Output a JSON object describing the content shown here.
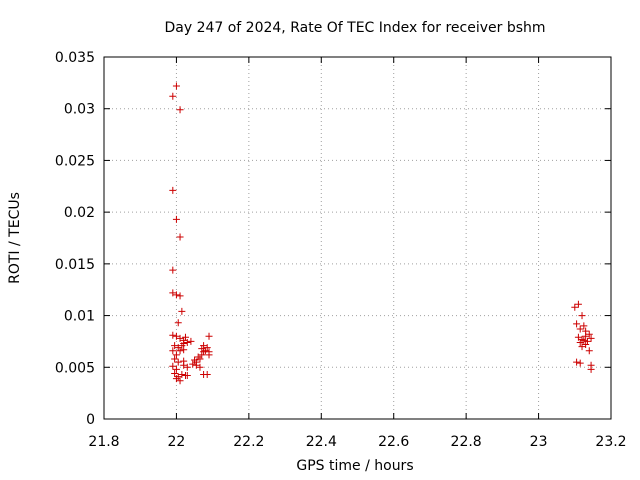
{
  "chart_data": {
    "type": "scatter",
    "title": "Day 247 of 2024, Rate Of TEC Index for receiver bshm",
    "xlabel": "GPS time / hours",
    "ylabel": "ROTI / TECUs",
    "xlim": [
      21.8,
      23.2
    ],
    "ylim": [
      0,
      0.035
    ],
    "xticks": [
      "21.8",
      "22",
      "22.2",
      "22.4",
      "22.6",
      "22.8",
      "23",
      "23.2"
    ],
    "xtick_values": [
      21.8,
      22.0,
      22.2,
      22.4,
      22.6,
      22.8,
      23.0,
      23.2
    ],
    "yticks": [
      "0",
      "0.005",
      "0.01",
      "0.015",
      "0.02",
      "0.025",
      "0.03",
      "0.035"
    ],
    "ytick_values": [
      0,
      0.005,
      0.01,
      0.015,
      0.02,
      0.025,
      0.03,
      0.035
    ],
    "grid": true,
    "legend": "none",
    "marker": "plus",
    "color": "#cc0000",
    "series": [
      {
        "points": [
          [
            21.99,
            0.0312
          ],
          [
            22.0,
            0.0322
          ],
          [
            22.01,
            0.0299
          ],
          [
            21.99,
            0.0221
          ],
          [
            22.0,
            0.0193
          ],
          [
            22.01,
            0.0176
          ],
          [
            21.99,
            0.0144
          ],
          [
            21.99,
            0.0122
          ],
          [
            22.0,
            0.012
          ],
          [
            22.01,
            0.0119
          ],
          [
            22.015,
            0.0104
          ],
          [
            22.005,
            0.0093
          ],
          [
            21.99,
            0.0081
          ],
          [
            22.0,
            0.008
          ],
          [
            22.01,
            0.0078
          ],
          [
            22.02,
            0.0076
          ],
          [
            22.025,
            0.0079
          ],
          [
            22.03,
            0.0074
          ],
          [
            22.04,
            0.0075
          ],
          [
            21.995,
            0.0071
          ],
          [
            22.005,
            0.0069
          ],
          [
            22.015,
            0.0071
          ],
          [
            22.02,
            0.0073
          ],
          [
            21.99,
            0.0066
          ],
          [
            22.0,
            0.0062
          ],
          [
            22.01,
            0.0066
          ],
          [
            22.02,
            0.0067
          ],
          [
            21.995,
            0.0058
          ],
          [
            22.005,
            0.0055
          ],
          [
            22.02,
            0.0056
          ],
          [
            21.99,
            0.0051
          ],
          [
            22.0,
            0.0048
          ],
          [
            22.02,
            0.0052
          ],
          [
            22.03,
            0.005
          ],
          [
            21.995,
            0.0044
          ],
          [
            22.005,
            0.0041
          ],
          [
            22.015,
            0.0043
          ],
          [
            22.025,
            0.0042
          ],
          [
            22.0,
            0.0039
          ],
          [
            22.01,
            0.0037
          ],
          [
            22.03,
            0.0042
          ],
          [
            22.045,
            0.0053
          ],
          [
            22.05,
            0.0057
          ],
          [
            22.055,
            0.0055
          ],
          [
            22.06,
            0.006
          ],
          [
            22.065,
            0.005
          ],
          [
            22.07,
            0.0062
          ],
          [
            22.075,
            0.0065
          ],
          [
            22.08,
            0.0066
          ],
          [
            22.07,
            0.0068
          ],
          [
            22.075,
            0.0071
          ],
          [
            22.085,
            0.0069
          ],
          [
            22.09,
            0.0065
          ],
          [
            22.09,
            0.0062
          ],
          [
            22.09,
            0.008
          ],
          [
            22.075,
            0.0043
          ],
          [
            22.085,
            0.0043
          ],
          [
            22.065,
            0.0058
          ],
          [
            22.055,
            0.0052
          ],
          [
            23.1,
            0.0108
          ],
          [
            23.11,
            0.0111
          ],
          [
            23.12,
            0.01
          ],
          [
            23.105,
            0.0092
          ],
          [
            23.115,
            0.0087
          ],
          [
            23.125,
            0.009
          ],
          [
            23.13,
            0.0085
          ],
          [
            23.11,
            0.0079
          ],
          [
            23.12,
            0.0077
          ],
          [
            23.13,
            0.008
          ],
          [
            23.14,
            0.0082
          ],
          [
            23.115,
            0.0074
          ],
          [
            23.125,
            0.0076
          ],
          [
            23.135,
            0.0075
          ],
          [
            23.145,
            0.0078
          ],
          [
            23.12,
            0.007
          ],
          [
            23.14,
            0.0066
          ],
          [
            23.13,
            0.0072
          ],
          [
            23.105,
            0.0055
          ],
          [
            23.115,
            0.0054
          ],
          [
            23.145,
            0.0052
          ],
          [
            23.145,
            0.0048
          ]
        ]
      }
    ]
  }
}
